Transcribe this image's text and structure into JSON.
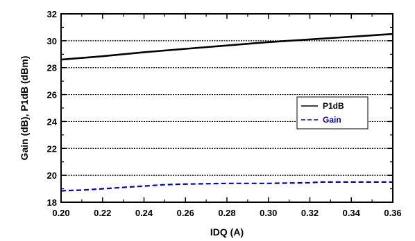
{
  "chart_data": {
    "type": "line",
    "title": "",
    "xlabel": "IDQ (A)",
    "ylabel": "Gain (dB), P1dB (dBm)",
    "xlim": [
      0.2,
      0.36
    ],
    "ylim": [
      18,
      32
    ],
    "xticks": [
      "0.20",
      "0.22",
      "0.24",
      "0.26",
      "0.28",
      "0.30",
      "0.32",
      "0.34",
      "0.36"
    ],
    "yticks": [
      "18",
      "20",
      "22",
      "24",
      "26",
      "28",
      "30",
      "32"
    ],
    "grid": "horizontal",
    "legend": "middle-right",
    "series": [
      {
        "name": "P1dB",
        "color": "#000000",
        "style": "solid",
        "x": [
          0.2,
          0.22,
          0.24,
          0.26,
          0.28,
          0.3,
          0.32,
          0.34,
          0.36
        ],
        "y": [
          28.6,
          28.85,
          29.15,
          29.4,
          29.65,
          29.9,
          30.1,
          30.3,
          30.5
        ]
      },
      {
        "name": "Gain",
        "color": "#0000cc",
        "style": "dashed",
        "x": [
          0.2,
          0.21,
          0.22,
          0.23,
          0.24,
          0.25,
          0.26,
          0.28,
          0.3,
          0.32,
          0.325,
          0.34,
          0.36
        ],
        "y": [
          18.85,
          18.9,
          19.0,
          19.1,
          19.2,
          19.3,
          19.35,
          19.4,
          19.4,
          19.45,
          19.5,
          19.5,
          19.5
        ]
      }
    ]
  }
}
